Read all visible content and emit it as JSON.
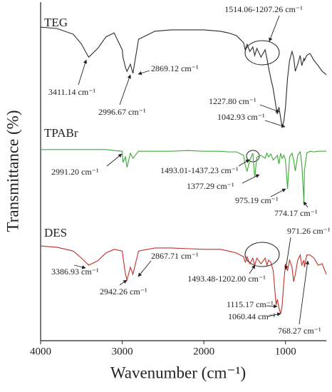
{
  "chart_data": {
    "type": "line",
    "x_label": "Wavenumber (cm⁻¹)",
    "y_label": "Transmittance (%)",
    "xlim": [
      4000,
      500
    ],
    "xticks": [
      4000,
      3000,
      2000,
      1000
    ],
    "ylim": [
      0,
      100
    ],
    "x": [
      4000,
      3800,
      3600,
      3500,
      3411,
      3300,
      3200,
      3100,
      3000,
      2991,
      2960,
      2942,
      2900,
      2869,
      2800,
      2600,
      2400,
      2200,
      2000,
      1800,
      1700,
      1600,
      1514,
      1493,
      1470,
      1437,
      1400,
      1377,
      1350,
      1300,
      1250,
      1227,
      1207,
      1180,
      1150,
      1115,
      1100,
      1080,
      1060,
      1042,
      1020,
      1000,
      975,
      950,
      920,
      900,
      880,
      850,
      820,
      800,
      774,
      768,
      740,
      700,
      650,
      600,
      550,
      500
    ],
    "series": [
      {
        "name": "TEG",
        "color": "#2b2b2b",
        "values": [
          93.0,
          92.6,
          90.9,
          88.0,
          84.1,
          86.7,
          90.1,
          91.3,
          86.3,
          84.1,
          81.0,
          79.9,
          82.0,
          79.3,
          89.4,
          91.8,
          92.2,
          92.2,
          92.2,
          91.8,
          91.3,
          90.5,
          88.4,
          86.3,
          87.9,
          85.8,
          87.1,
          84.6,
          86.7,
          84.1,
          86.3,
          83.7,
          81.0,
          77.8,
          74.6,
          69.3,
          67.2,
          69.3,
          66.2,
          63.4,
          65.1,
          69.3,
          77.8,
          83.1,
          85.8,
          84.1,
          79.9,
          82.0,
          84.6,
          81.6,
          83.7,
          83.1,
          84.6,
          85.2,
          83.1,
          81.6,
          79.9,
          78.9
        ]
      },
      {
        "name": "TPABr",
        "color": "#3aaa35",
        "values": [
          56.7,
          56.7,
          56.7,
          56.7,
          56.7,
          56.7,
          56.7,
          56.4,
          56.2,
          52.9,
          54.5,
          51.4,
          55.6,
          54.1,
          56.2,
          56.2,
          56.2,
          56.4,
          56.2,
          56.2,
          56.0,
          56.0,
          55.0,
          52.0,
          50.3,
          53.6,
          55.6,
          48.6,
          54.5,
          55.0,
          54.1,
          55.6,
          54.5,
          55.4,
          53.6,
          54.5,
          55.0,
          52.4,
          55.6,
          54.1,
          55.0,
          53.6,
          45.0,
          54.5,
          55.6,
          53.6,
          50.3,
          55.0,
          56.0,
          52.4,
          41.2,
          50.3,
          55.6,
          56.2,
          56.0,
          56.2,
          56.2,
          56.2
        ]
      },
      {
        "name": "DES",
        "color": "#c1302b",
        "values": [
          28.1,
          27.7,
          26.6,
          24.5,
          22.4,
          23.7,
          26.0,
          27.1,
          26.6,
          24.9,
          19.7,
          18.0,
          21.8,
          19.7,
          26.6,
          27.5,
          27.5,
          27.3,
          27.1,
          27.1,
          26.6,
          26.0,
          24.9,
          23.3,
          24.9,
          22.8,
          24.5,
          22.4,
          24.5,
          22.8,
          24.5,
          22.4,
          23.9,
          23.3,
          20.7,
          10.6,
          12.3,
          9.7,
          8.0,
          10.1,
          17.5,
          22.8,
          20.7,
          23.9,
          21.8,
          17.5,
          19.7,
          23.9,
          25.4,
          22.4,
          23.9,
          21.8,
          25.4,
          25.4,
          24.5,
          22.4,
          22.8,
          19.7
        ]
      }
    ],
    "annotations": [
      "1514.06-1207.26 cm⁻¹",
      "3411.14 cm⁻¹",
      "2996.67 cm⁻¹",
      "2869.12 cm⁻¹",
      "1227.80 cm⁻¹",
      "1042.93 cm⁻¹",
      "2991.20 cm⁻¹",
      "1493.01-1437.23 cm⁻¹",
      "1377.29 cm⁻¹",
      "975.19 cm⁻¹",
      "774.17 cm⁻¹",
      "3386.93 cm⁻¹",
      "2942.26 cm⁻¹",
      "2867.71 cm⁻¹",
      "1493.48-1202.00 cm⁻¹",
      "971.26 cm⁻¹",
      "1115.17 cm⁻¹",
      "1060.44 cm⁻¹",
      "768.27 cm⁻¹"
    ]
  }
}
